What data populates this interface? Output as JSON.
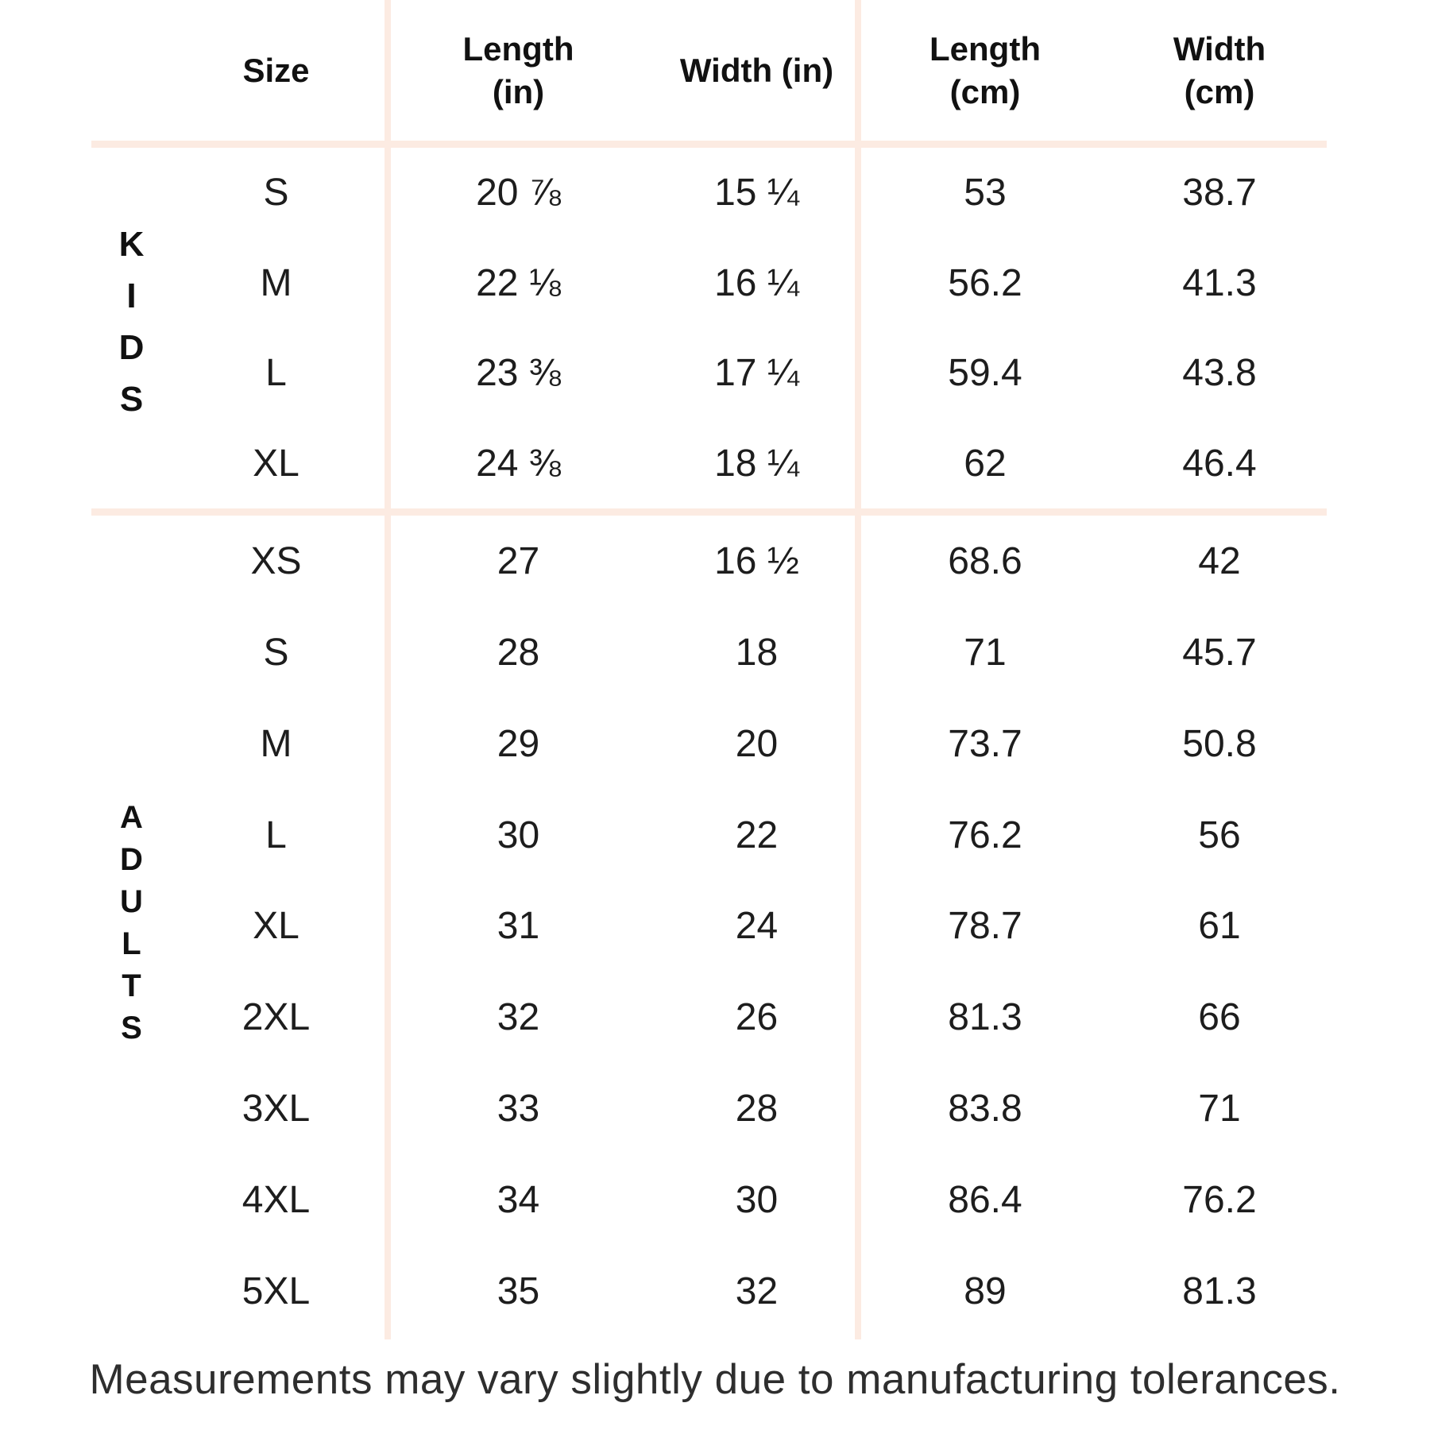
{
  "colors": {
    "background": "#ffffff",
    "divider": "#fcebe2",
    "text": "#1d1d1d",
    "header_text": "#111111",
    "footnote_text": "#2e2e2e"
  },
  "display": {
    "headers": {
      "size": "Size",
      "length_in": "Length\n(in)",
      "width_in": "Width (in)",
      "length_cm": "Length\n(cm)",
      "width_cm": "Width\n(cm)"
    }
  },
  "chart_data": {
    "type": "table",
    "columns": [
      "Size",
      "Length (in)",
      "Width (in)",
      "Length (cm)",
      "Width (cm)"
    ],
    "row_groups": [
      {
        "group": "KIDS",
        "rows": [
          [
            "S",
            "20 ⅞",
            "15 ¼",
            "53",
            "38.7"
          ],
          [
            "M",
            "22 ⅛",
            "16 ¼",
            "56.2",
            "41.3"
          ],
          [
            "L",
            "23 ⅜",
            "17 ¼",
            "59.4",
            "43.8"
          ],
          [
            "XL",
            "24 ⅜",
            "18 ¼",
            "62",
            "46.4"
          ]
        ]
      },
      {
        "group": "ADULTS",
        "rows": [
          [
            "XS",
            "27",
            "16 ½",
            "68.6",
            "42"
          ],
          [
            "S",
            "28",
            "18",
            "71",
            "45.7"
          ],
          [
            "M",
            "29",
            "20",
            "73.7",
            "50.8"
          ],
          [
            "L",
            "30",
            "22",
            "76.2",
            "56"
          ],
          [
            "XL",
            "31",
            "24",
            "78.7",
            "61"
          ],
          [
            "2XL",
            "32",
            "26",
            "81.3",
            "66"
          ],
          [
            "3XL",
            "33",
            "28",
            "83.8",
            "71"
          ],
          [
            "4XL",
            "34",
            "30",
            "86.4",
            "76.2"
          ],
          [
            "5XL",
            "35",
            "32",
            "89",
            "81.3"
          ]
        ]
      }
    ],
    "footnote": "Measurements may vary slightly due to manufacturing tolerances."
  }
}
